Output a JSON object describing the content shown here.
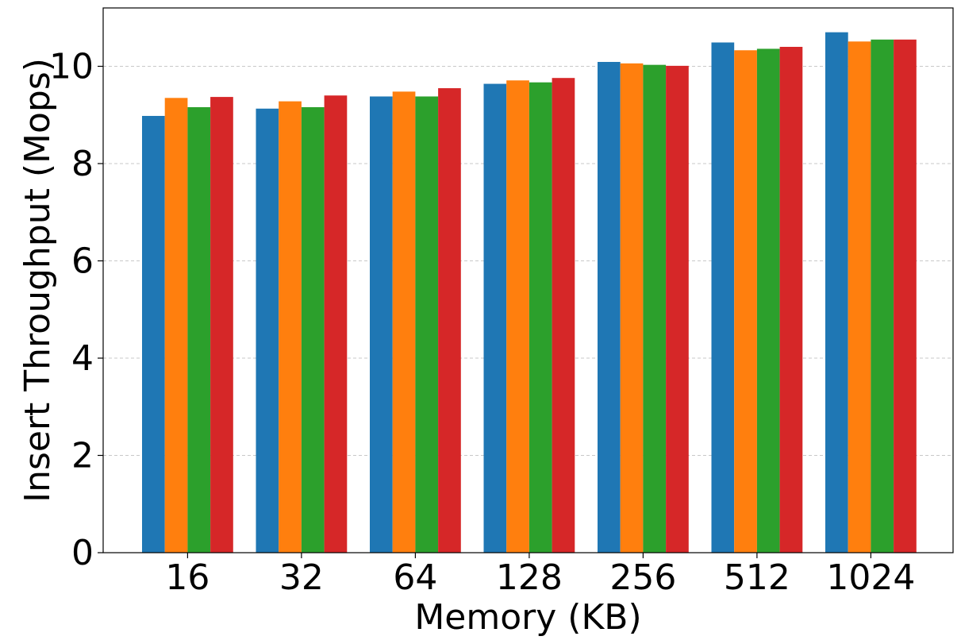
{
  "chart_data": {
    "type": "bar",
    "title": "",
    "xlabel": "Memory (KB)",
    "ylabel": "Insert Throughput (Mops)",
    "categories": [
      "16",
      "32",
      "64",
      "128",
      "256",
      "512",
      "1024"
    ],
    "ylim": [
      0,
      11.2
    ],
    "yticks": [
      0,
      2,
      4,
      6,
      8,
      10
    ],
    "grid": "horizontal dashed",
    "legend": "none",
    "series": [
      {
        "color": "#1f77b4",
        "values": [
          8.98,
          9.13,
          9.38,
          9.64,
          10.09,
          10.49,
          10.7
        ]
      },
      {
        "color": "#ff7f0e",
        "values": [
          9.35,
          9.28,
          9.48,
          9.71,
          10.06,
          10.33,
          10.51
        ]
      },
      {
        "color": "#2ca02c",
        "values": [
          9.16,
          9.16,
          9.38,
          9.67,
          10.03,
          10.36,
          10.55
        ]
      },
      {
        "color": "#d62728",
        "values": [
          9.37,
          9.4,
          9.55,
          9.76,
          10.01,
          10.4,
          10.55
        ]
      }
    ]
  }
}
